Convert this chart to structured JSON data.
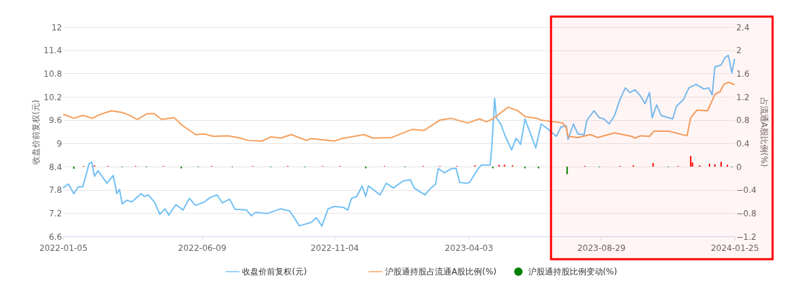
{
  "chart_data": {
    "type": "line",
    "ylabel": "收盘价前复权(元)",
    "y2label": "占流通A股比例(%)",
    "legend": "bottom",
    "grid": "y",
    "xlim": [
      "2022-01-05",
      "2024-01-25"
    ],
    "xticks": [
      "2022-01-05",
      "2022-06-09",
      "2022-11-04",
      "2023-04-03",
      "2023-08-29",
      "2024-01-25"
    ],
    "ylim": [
      6.6,
      12
    ],
    "yticks": [
      6.6,
      7.2,
      7.8,
      8.4,
      9,
      9.6,
      10.2,
      10.8,
      11.4,
      12
    ],
    "y2lim": [
      -1.2,
      2.4
    ],
    "y2ticks": [
      -1.2,
      -0.8,
      -0.4,
      0,
      0.4,
      0.8,
      1.2,
      1.6,
      2,
      2.4
    ],
    "line_style": "solid",
    "bands": [
      {
        "axis": "x",
        "from": "2023-07-04",
        "to": "2024-01-25",
        "color": "#ff0000"
      }
    ],
    "series": [
      {
        "name": "收盘价前复权(元)",
        "color": "#73c0f4",
        "x": [
          "2022-01-05",
          "2022-01-11",
          "2022-01-17",
          "2022-01-22",
          "2022-01-27",
          "2022-02-03",
          "2022-02-06",
          "2022-02-09",
          "2022-02-13",
          "2022-02-23",
          "2022-03-02",
          "2022-03-06",
          "2022-03-09",
          "2022-03-12",
          "2022-03-17",
          "2022-03-23",
          "2022-04-02",
          "2022-04-06",
          "2022-04-10",
          "2022-04-17",
          "2022-04-23",
          "2022-04-29",
          "2022-05-03",
          "2022-05-11",
          "2022-05-19",
          "2022-05-26",
          "2022-06-02",
          "2022-06-12",
          "2022-06-18",
          "2022-06-26",
          "2022-07-02",
          "2022-07-10",
          "2022-07-16",
          "2022-07-29",
          "2022-08-03",
          "2022-08-08",
          "2022-08-21",
          "2022-09-05",
          "2022-09-15",
          "2022-09-21",
          "2022-09-26",
          "2022-10-09",
          "2022-10-15",
          "2022-10-21",
          "2022-10-28",
          "2022-11-04",
          "2022-11-14",
          "2022-11-19",
          "2022-11-23",
          "2022-11-29",
          "2022-12-05",
          "2022-12-09",
          "2022-12-12",
          "2022-12-20",
          "2022-12-25",
          "2023-01-01",
          "2023-01-09",
          "2023-01-20",
          "2023-01-28",
          "2023-02-01",
          "2023-02-13",
          "2023-02-20",
          "2023-02-25",
          "2023-02-28",
          "2023-03-07",
          "2023-03-15",
          "2023-03-20",
          "2023-03-24",
          "2023-03-31",
          "2023-04-04",
          "2023-04-12",
          "2023-04-17",
          "2023-04-27",
          "2023-04-29",
          "2023-05-02",
          "2023-05-04",
          "2023-05-09",
          "2023-05-14",
          "2023-05-21",
          "2023-05-26",
          "2023-05-31",
          "2023-06-05",
          "2023-06-10",
          "2023-06-17",
          "2023-06-23",
          "2023-07-01",
          "2023-07-10",
          "2023-07-15",
          "2023-07-21",
          "2023-07-23",
          "2023-07-29",
          "2023-08-03",
          "2023-08-10",
          "2023-08-13",
          "2023-08-21",
          "2023-08-27",
          "2023-09-01",
          "2023-09-07",
          "2023-09-13",
          "2023-09-19",
          "2023-09-25",
          "2023-09-30",
          "2023-10-06",
          "2023-10-12",
          "2023-10-17",
          "2023-10-22",
          "2023-10-25",
          "2023-10-30",
          "2023-11-04",
          "2023-11-12",
          "2023-11-17",
          "2023-11-21",
          "2023-11-29",
          "2023-12-05",
          "2023-12-13",
          "2023-12-22",
          "2023-12-27",
          "2023-12-31",
          "2024-01-03",
          "2024-01-10",
          "2024-01-14",
          "2024-01-18",
          "2024-01-22",
          "2024-01-25"
        ],
        "values": [
          7.85,
          7.95,
          7.7,
          7.88,
          7.88,
          8.47,
          8.52,
          8.15,
          8.29,
          7.97,
          8.17,
          7.7,
          7.81,
          7.44,
          7.53,
          7.49,
          7.7,
          7.63,
          7.67,
          7.49,
          7.17,
          7.31,
          7.15,
          7.42,
          7.28,
          7.58,
          7.4,
          7.49,
          7.6,
          7.67,
          7.46,
          7.56,
          7.3,
          7.28,
          7.13,
          7.22,
          7.19,
          7.31,
          7.26,
          7.05,
          6.87,
          6.96,
          7.08,
          6.87,
          7.31,
          7.37,
          7.35,
          7.28,
          7.58,
          7.63,
          7.9,
          7.63,
          7.9,
          7.76,
          7.67,
          7.97,
          7.85,
          8.03,
          8.06,
          7.85,
          7.67,
          7.85,
          7.94,
          8.35,
          8.24,
          8.35,
          8.35,
          7.99,
          7.97,
          7.99,
          8.29,
          8.44,
          8.44,
          8.95,
          10.16,
          9.66,
          9.49,
          9.18,
          8.83,
          9.13,
          8.97,
          9.63,
          9.31,
          8.88,
          9.5,
          9.36,
          9.18,
          9.42,
          9.45,
          9.1,
          9.5,
          9.24,
          9.22,
          9.59,
          9.84,
          9.66,
          9.63,
          9.5,
          9.72,
          10.13,
          10.43,
          10.31,
          10.38,
          10.22,
          10.02,
          10.31,
          9.66,
          9.99,
          9.72,
          9.66,
          9.63,
          9.95,
          10.13,
          10.43,
          10.52,
          10.4,
          10.43,
          10.25,
          10.97,
          11.02,
          11.2,
          11.27,
          10.82,
          11.18
        ]
      },
      {
        "name": "沪股通持股占流通A股比例(%)",
        "axis": "y2",
        "color": "#f5a05d",
        "x": [
          "2022-01-05",
          "2022-01-17",
          "2022-01-27",
          "2022-02-07",
          "2022-02-14",
          "2022-02-28",
          "2022-03-12",
          "2022-03-19",
          "2022-03-29",
          "2022-04-09",
          "2022-04-17",
          "2022-04-25",
          "2022-05-09",
          "2022-05-18",
          "2022-06-02",
          "2022-06-12",
          "2022-06-22",
          "2022-07-08",
          "2022-07-19",
          "2022-07-31",
          "2022-08-15",
          "2022-08-25",
          "2022-09-05",
          "2022-09-17",
          "2022-09-27",
          "2022-10-04",
          "2022-10-09",
          "2022-11-04",
          "2022-11-12",
          "2022-12-07",
          "2022-12-17",
          "2023-01-07",
          "2023-01-30",
          "2023-02-12",
          "2023-03-02",
          "2023-03-14",
          "2023-04-02",
          "2023-04-15",
          "2023-04-23",
          "2023-04-30",
          "2023-05-17",
          "2023-05-28",
          "2023-06-05",
          "2023-06-18",
          "2023-06-23",
          "2023-07-17",
          "2023-07-21",
          "2023-07-23",
          "2023-08-03",
          "2023-08-17",
          "2023-08-25",
          "2023-09-13",
          "2023-10-02",
          "2023-10-06",
          "2023-10-12",
          "2023-10-22",
          "2023-10-27",
          "2023-11-12",
          "2023-11-25",
          "2023-12-03",
          "2023-12-07",
          "2023-12-14",
          "2023-12-26",
          "2024-01-03",
          "2024-01-09",
          "2024-01-13",
          "2024-01-18",
          "2024-01-25"
        ],
        "values": [
          0.9,
          0.83,
          0.88,
          0.83,
          0.89,
          0.96,
          0.93,
          0.89,
          0.81,
          0.91,
          0.91,
          0.81,
          0.84,
          0.71,
          0.55,
          0.56,
          0.52,
          0.53,
          0.5,
          0.45,
          0.44,
          0.51,
          0.49,
          0.55,
          0.49,
          0.45,
          0.48,
          0.44,
          0.48,
          0.55,
          0.49,
          0.5,
          0.64,
          0.62,
          0.8,
          0.83,
          0.75,
          0.82,
          0.77,
          0.82,
          1.02,
          0.96,
          0.86,
          0.83,
          0.8,
          0.75,
          0.67,
          0.52,
          0.5,
          0.55,
          0.5,
          0.58,
          0.52,
          0.49,
          0.53,
          0.52,
          0.61,
          0.61,
          0.56,
          0.53,
          0.84,
          0.97,
          0.96,
          1.24,
          1.29,
          1.41,
          1.45,
          1.41
        ]
      },
      {
        "name": "沪股通持股比例变动(%)",
        "type": "bar",
        "axis": "y2",
        "color": "#008000",
        "x": [
          "2022-01-17",
          "2022-01-28",
          "2022-02-09",
          "2022-02-24",
          "2022-03-12",
          "2022-03-27",
          "2022-04-08",
          "2022-04-27",
          "2022-05-17",
          "2022-06-05",
          "2022-06-20",
          "2022-07-13",
          "2022-08-05",
          "2022-08-25",
          "2022-09-13",
          "2022-10-02",
          "2022-10-22",
          "2022-11-10",
          "2022-12-09",
          "2022-12-30",
          "2023-01-22",
          "2023-02-11",
          "2023-03-02",
          "2023-03-21",
          "2023-04-10",
          "2023-04-30",
          "2023-05-07",
          "2023-05-13",
          "2023-05-22",
          "2023-06-05",
          "2023-06-20",
          "2023-07-04",
          "2023-07-22",
          "2023-08-11",
          "2023-08-27",
          "2023-09-19",
          "2023-10-04",
          "2023-10-26",
          "2023-11-12",
          "2023-11-23",
          "2023-12-07",
          "2023-12-09",
          "2023-12-17",
          "2023-12-28",
          "2024-01-03",
          "2024-01-10",
          "2024-01-17",
          "2024-01-22"
        ],
        "values": [
          -0.04,
          0.01,
          0.02,
          0.01,
          -0.01,
          0.01,
          -0.01,
          0.01,
          -0.03,
          -0.01,
          0.01,
          -0.01,
          0.01,
          -0.01,
          0.01,
          -0.01,
          0.01,
          0.01,
          -0.03,
          0.01,
          -0.01,
          0.01,
          0.01,
          0.01,
          0.02,
          -0.03,
          0.03,
          0.03,
          0.02,
          -0.03,
          -0.03,
          null,
          -0.13,
          0.01,
          -0.01,
          0.01,
          0.02,
          0.06,
          -0.01,
          0.01,
          0.18,
          0.07,
          0.02,
          0.05,
          0.04,
          0.08,
          0.03,
          -0.01
        ],
        "colors": [
          "#008000",
          "#ff0000",
          "#ff0000",
          "#ff0000",
          "#008000",
          "#ff0000",
          "#008000",
          "#ff0000",
          "#008000",
          "#008000",
          "#ff0000",
          "#008000",
          "#ff0000",
          "#008000",
          "#ff0000",
          "#008000",
          "#ff0000",
          "#ff0000",
          "#008000",
          "#ff0000",
          "#008000",
          "#ff0000",
          "#ff0000",
          "#ff0000",
          "#ff0000",
          "#008000",
          "#ff0000",
          "#ff0000",
          "#ff0000",
          "#008000",
          "#008000",
          "#ff0000",
          "#008000",
          "#ff0000",
          "#008000",
          "#ff0000",
          "#ff0000",
          "#ff0000",
          "#008000",
          "#ff0000",
          "#ff0000",
          "#ff0000",
          "#ff0000",
          "#ff0000",
          "#ff0000",
          "#ff0000",
          "#ff0000",
          "#008000"
        ]
      }
    ]
  }
}
